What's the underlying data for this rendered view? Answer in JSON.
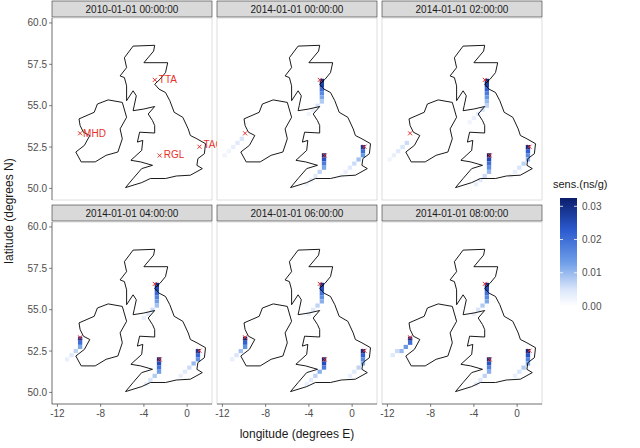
{
  "chart_data": {
    "type": "heatmap",
    "x_label": "longitude (degrees E)",
    "y_label": "latitude (degrees N)",
    "xlim": [
      -12.5,
      2.3
    ],
    "ylim": [
      49.3,
      60.3
    ],
    "xticks": [
      -12,
      -8,
      -4,
      0
    ],
    "yticks": [
      {
        "value": 50,
        "label": "50.0"
      },
      {
        "value": 52.5,
        "label": "52.5"
      },
      {
        "value": 55,
        "label": "55.0"
      },
      {
        "value": 57.5,
        "label": "57.5"
      },
      {
        "value": 60,
        "label": "60.0"
      }
    ],
    "cell_width": 0.4,
    "cell_height": 0.25,
    "colorbar": {
      "title": "sens.(ns/g)",
      "range": [
        0,
        0.0325
      ],
      "ticks": [
        {
          "value": 0,
          "label": "0.00"
        },
        {
          "value": 0.01,
          "label": "0.01"
        },
        {
          "value": 0.02,
          "label": "0.02"
        },
        {
          "value": 0.03,
          "label": "0.03"
        }
      ]
    },
    "sites": [
      {
        "name": "TTA",
        "lon": -2.99,
        "lat": 56.56
      },
      {
        "name": "MHD",
        "lon": -9.9,
        "lat": 53.33
      },
      {
        "name": "RGL",
        "lon": -2.54,
        "lat": 51.99
      },
      {
        "name": "TAC",
        "lon": 1.14,
        "lat": 52.52
      }
    ],
    "panels": [
      {
        "title": "2010-01-01 00:00:00",
        "cells": []
      },
      {
        "title": "2014-01-01 00:00:00",
        "cells": [
          [
            -2.8,
            56.5,
            0.03
          ],
          [
            -2.8,
            56.25,
            0.026
          ],
          [
            -2.8,
            56.0,
            0.02
          ],
          [
            -2.8,
            55.75,
            0.016
          ],
          [
            -2.8,
            55.5,
            0.012
          ],
          [
            -2.8,
            55.25,
            0.008
          ],
          [
            -3.2,
            55.0,
            0.005
          ],
          [
            -3.6,
            54.75,
            0.003
          ],
          [
            -4.0,
            54.5,
            0.002
          ],
          [
            -2.6,
            52.0,
            0.03
          ],
          [
            -2.6,
            51.75,
            0.024
          ],
          [
            -2.6,
            51.5,
            0.018
          ],
          [
            -2.6,
            51.25,
            0.012
          ],
          [
            -3.0,
            51.0,
            0.007
          ],
          [
            -3.4,
            50.75,
            0.004
          ],
          [
            -3.8,
            50.5,
            0.003
          ],
          [
            -4.2,
            50.25,
            0.002
          ],
          [
            1.0,
            52.5,
            0.028
          ],
          [
            1.0,
            52.25,
            0.02
          ],
          [
            1.0,
            52.0,
            0.014
          ],
          [
            0.6,
            51.75,
            0.009
          ],
          [
            0.2,
            51.5,
            0.006
          ],
          [
            -0.2,
            51.25,
            0.004
          ],
          [
            -0.6,
            51.0,
            0.003
          ],
          [
            -1.0,
            50.75,
            0.002
          ],
          [
            -10.2,
            53.0,
            0.005
          ],
          [
            -10.6,
            52.75,
            0.004
          ],
          [
            -11.0,
            52.5,
            0.003
          ],
          [
            -11.4,
            52.25,
            0.002
          ],
          [
            -11.8,
            52.0,
            0.002
          ]
        ]
      },
      {
        "title": "2014-01-01 02:00:00",
        "cells": [
          [
            -2.8,
            56.5,
            0.031
          ],
          [
            -2.8,
            56.25,
            0.027
          ],
          [
            -2.8,
            56.0,
            0.022
          ],
          [
            -2.8,
            55.75,
            0.018
          ],
          [
            -2.8,
            55.5,
            0.014
          ],
          [
            -2.8,
            55.25,
            0.01
          ],
          [
            -2.8,
            55.0,
            0.007
          ],
          [
            -3.2,
            54.75,
            0.005
          ],
          [
            -3.6,
            54.5,
            0.004
          ],
          [
            -4.0,
            54.25,
            0.003
          ],
          [
            -4.4,
            54.0,
            0.002
          ],
          [
            -2.6,
            52.0,
            0.032
          ],
          [
            -2.6,
            51.75,
            0.026
          ],
          [
            -2.6,
            51.5,
            0.02
          ],
          [
            -2.6,
            51.25,
            0.015
          ],
          [
            -2.6,
            51.0,
            0.01
          ],
          [
            -3.0,
            50.75,
            0.006
          ],
          [
            -3.4,
            50.5,
            0.004
          ],
          [
            -3.8,
            50.25,
            0.003
          ],
          [
            1.0,
            52.5,
            0.03
          ],
          [
            1.0,
            52.25,
            0.022
          ],
          [
            1.0,
            52.0,
            0.016
          ],
          [
            1.0,
            51.75,
            0.011
          ],
          [
            0.6,
            51.5,
            0.007
          ],
          [
            0.2,
            51.25,
            0.005
          ],
          [
            -0.2,
            51.0,
            0.003
          ],
          [
            -0.6,
            50.75,
            0.002
          ],
          [
            -10.2,
            52.75,
            0.006
          ],
          [
            -10.6,
            52.5,
            0.005
          ],
          [
            -11.0,
            52.25,
            0.004
          ],
          [
            -11.4,
            52.0,
            0.003
          ],
          [
            -11.8,
            51.75,
            0.002
          ]
        ]
      },
      {
        "title": "2014-01-01 04:00:00",
        "cells": [
          [
            -2.8,
            56.5,
            0.03
          ],
          [
            -2.8,
            56.25,
            0.025
          ],
          [
            -2.8,
            56.0,
            0.021
          ],
          [
            -2.8,
            55.75,
            0.017
          ],
          [
            -2.8,
            55.5,
            0.013
          ],
          [
            -2.8,
            55.25,
            0.009
          ],
          [
            -3.2,
            55.0,
            0.006
          ],
          [
            -3.6,
            54.75,
            0.004
          ],
          [
            -4.0,
            54.5,
            0.003
          ],
          [
            -9.9,
            53.25,
            0.028
          ],
          [
            -9.9,
            53.0,
            0.02
          ],
          [
            -9.9,
            52.75,
            0.012
          ],
          [
            -10.3,
            52.5,
            0.007
          ],
          [
            -10.7,
            52.25,
            0.004
          ],
          [
            -11.1,
            52.0,
            0.003
          ],
          [
            -2.6,
            52.0,
            0.03
          ],
          [
            -2.6,
            51.75,
            0.025
          ],
          [
            -2.6,
            51.5,
            0.019
          ],
          [
            -2.6,
            51.25,
            0.013
          ],
          [
            -3.0,
            51.0,
            0.008
          ],
          [
            -3.4,
            50.75,
            0.005
          ],
          [
            -3.8,
            50.5,
            0.003
          ],
          [
            1.0,
            52.5,
            0.029
          ],
          [
            1.0,
            52.25,
            0.021
          ],
          [
            1.0,
            52.0,
            0.015
          ],
          [
            0.6,
            51.75,
            0.01
          ],
          [
            0.2,
            51.5,
            0.006
          ],
          [
            -0.2,
            51.25,
            0.004
          ],
          [
            -0.6,
            51.0,
            0.003
          ]
        ]
      },
      {
        "title": "2014-01-01 06:00:00",
        "cells": [
          [
            -2.8,
            56.5,
            0.029
          ],
          [
            -2.8,
            56.25,
            0.024
          ],
          [
            -2.8,
            56.0,
            0.019
          ],
          [
            -2.8,
            55.75,
            0.015
          ],
          [
            -2.8,
            55.5,
            0.011
          ],
          [
            -3.2,
            55.25,
            0.007
          ],
          [
            -3.6,
            55.0,
            0.004
          ],
          [
            -4.0,
            54.75,
            0.003
          ],
          [
            -9.9,
            53.25,
            0.03
          ],
          [
            -9.9,
            53.0,
            0.022
          ],
          [
            -9.9,
            52.75,
            0.015
          ],
          [
            -10.3,
            52.5,
            0.009
          ],
          [
            -10.7,
            52.25,
            0.005
          ],
          [
            -11.1,
            52.0,
            0.003
          ],
          [
            -2.6,
            52.0,
            0.031
          ],
          [
            -2.6,
            51.75,
            0.025
          ],
          [
            -2.6,
            51.5,
            0.018
          ],
          [
            -3.0,
            51.25,
            0.011
          ],
          [
            -3.4,
            51.0,
            0.007
          ],
          [
            -3.8,
            50.75,
            0.004
          ],
          [
            -4.2,
            50.5,
            0.003
          ],
          [
            1.0,
            52.5,
            0.03
          ],
          [
            1.0,
            52.25,
            0.022
          ],
          [
            1.0,
            52.0,
            0.016
          ],
          [
            1.0,
            51.75,
            0.011
          ],
          [
            0.6,
            51.5,
            0.007
          ],
          [
            0.2,
            51.25,
            0.004
          ],
          [
            -0.2,
            51.0,
            0.003
          ]
        ]
      },
      {
        "title": "2014-01-01 08:00:00",
        "cells": [
          [
            -2.8,
            56.5,
            0.03
          ],
          [
            -2.8,
            56.25,
            0.025
          ],
          [
            -2.8,
            56.0,
            0.02
          ],
          [
            -2.8,
            55.75,
            0.016
          ],
          [
            -2.8,
            55.5,
            0.012
          ],
          [
            -3.2,
            55.25,
            0.008
          ],
          [
            -3.6,
            55.0,
            0.005
          ],
          [
            -4.0,
            54.75,
            0.003
          ],
          [
            -9.9,
            53.25,
            0.029
          ],
          [
            -9.9,
            53.0,
            0.02
          ],
          [
            -10.3,
            52.75,
            0.014
          ],
          [
            -10.7,
            52.5,
            0.01
          ],
          [
            -11.1,
            52.5,
            0.006
          ],
          [
            -11.5,
            52.25,
            0.004
          ],
          [
            -2.6,
            52.0,
            0.03
          ],
          [
            -2.6,
            51.75,
            0.024
          ],
          [
            -2.6,
            51.5,
            0.017
          ],
          [
            -2.6,
            51.25,
            0.011
          ],
          [
            -3.0,
            51.0,
            0.007
          ],
          [
            -3.4,
            50.75,
            0.004
          ],
          [
            -3.8,
            50.5,
            0.003
          ],
          [
            1.0,
            52.5,
            0.031
          ],
          [
            1.0,
            52.25,
            0.024
          ],
          [
            1.0,
            52.0,
            0.017
          ],
          [
            1.0,
            51.75,
            0.012
          ],
          [
            0.6,
            51.5,
            0.008
          ],
          [
            0.2,
            51.25,
            0.005
          ],
          [
            -0.2,
            51.0,
            0.003
          ]
        ]
      }
    ]
  }
}
